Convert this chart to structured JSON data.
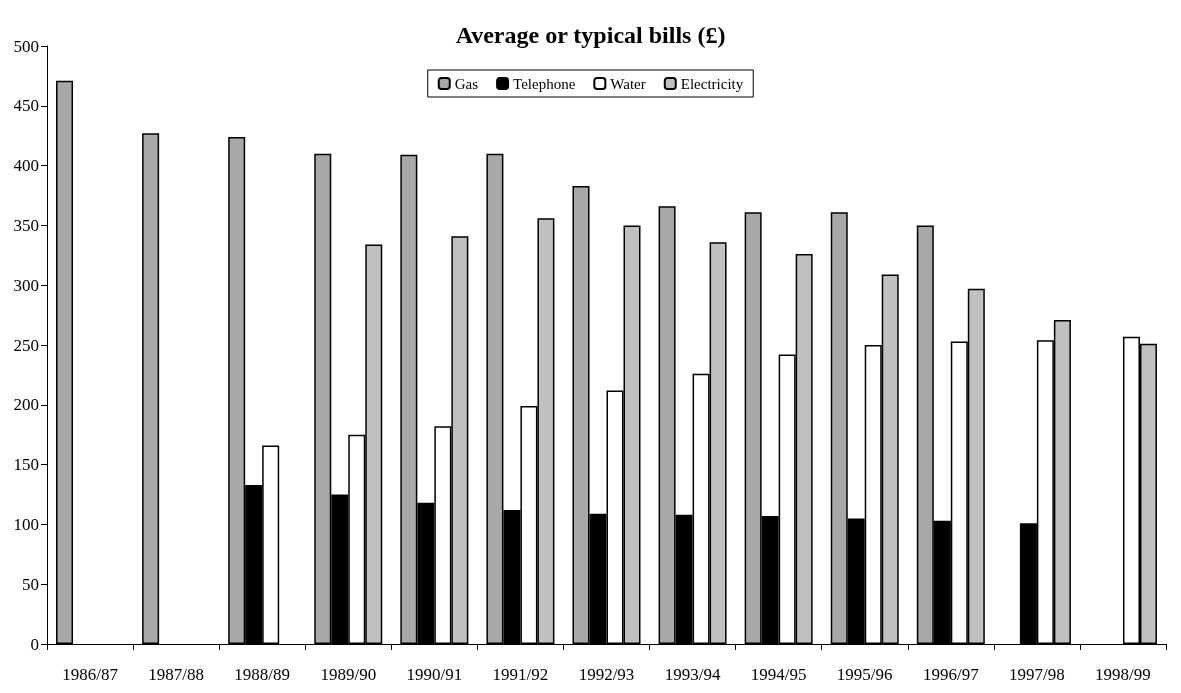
{
  "chart_data": {
    "type": "bar",
    "title": "Average or typical bills (£)",
    "categories": [
      "1986/87",
      "1987/88",
      "1988/89",
      "1989/90",
      "1990/91",
      "1991/92",
      "1992/93",
      "1993/94",
      "1994/95",
      "1995/96",
      "1996/97",
      "1997/98",
      "1998/99"
    ],
    "series": [
      {
        "name": "Gas",
        "color": "#a8a8a8",
        "values": [
          471,
          427,
          424,
          410,
          409,
          410,
          383,
          366,
          361,
          361,
          350,
          null,
          null
        ]
      },
      {
        "name": "Telephone",
        "color": "#000000",
        "values": [
          null,
          null,
          133,
          125,
          118,
          112,
          109,
          108,
          107,
          105,
          103,
          101,
          null
        ]
      },
      {
        "name": "Water",
        "color": "#ffffff",
        "values": [
          null,
          null,
          166,
          175,
          182,
          199,
          212,
          226,
          242,
          250,
          253,
          254,
          257
        ]
      },
      {
        "name": "Electricity",
        "color": "#c0c0c0",
        "values": [
          null,
          null,
          null,
          334,
          341,
          356,
          350,
          336,
          326,
          309,
          297,
          271,
          251
        ]
      }
    ],
    "ylim": [
      0,
      500
    ],
    "yticks": [
      0,
      50,
      100,
      150,
      200,
      250,
      300,
      350,
      400,
      450,
      500
    ],
    "grid": false,
    "legend": "top"
  }
}
